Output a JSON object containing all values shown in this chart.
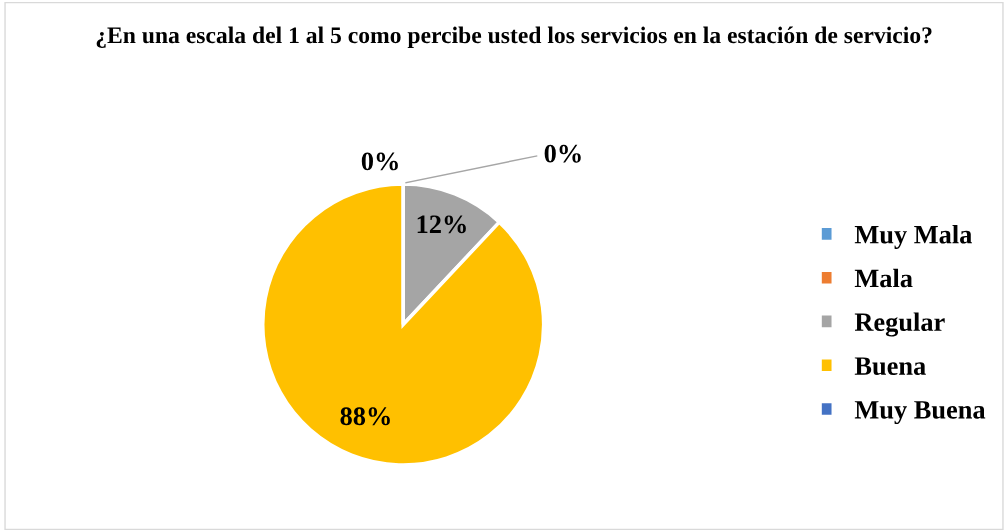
{
  "chart_data": {
    "type": "pie",
    "title": "¿En una escala del 1 al 5 como percibe usted los servicios en la estación de servicio?",
    "categories": [
      "Muy Mala",
      "Mala",
      "Regular",
      "Buena",
      "Muy Buena"
    ],
    "values": [
      0,
      0,
      12,
      88,
      0
    ],
    "colors": [
      "#5b9bd5",
      "#ed7d31",
      "#a5a5a5",
      "#ffc000",
      "#4472c4"
    ],
    "value_labels": [
      "0%",
      "0%",
      "12%",
      "88%",
      null
    ],
    "legend": "right"
  }
}
